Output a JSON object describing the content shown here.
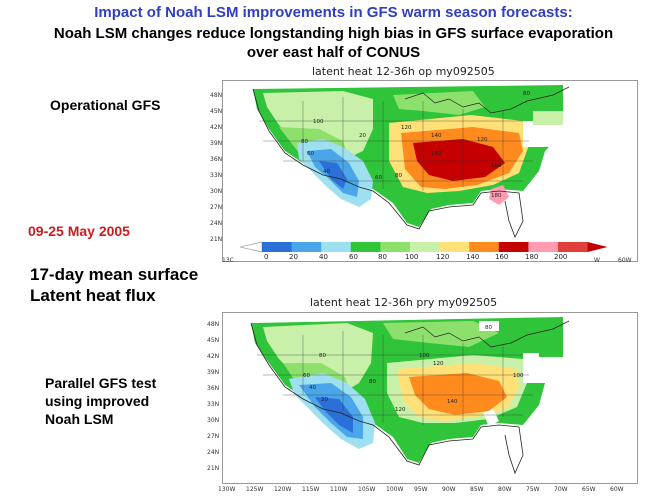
{
  "title_line1": "Impact of Noah LSM improvements in GFS warm season forecasts:",
  "title_line2a": "Noah LSM changes reduce longstanding high  bias in GFS surface evaporation",
  "title_line2b": "over east half of CONUS",
  "label_operational": "Operational GFS",
  "label_dates": "09-25 May 2005",
  "label_mean_a": "17-day mean surface",
  "label_mean_b": "Latent heat flux",
  "label_parallel_a": "Parallel GFS test",
  "label_parallel_b": "using improved",
  "label_parallel_c": "Noah LSM",
  "colors": {
    "title_blue": "#2f3fc4",
    "dates_red": "#c81e1e"
  },
  "map_top": {
    "title": "latent heat 12-36h op my092505",
    "lat_labels": [
      "48N",
      "45N",
      "42N",
      "39N",
      "36N",
      "33N",
      "30N",
      "27N",
      "24N",
      "21N"
    ],
    "lon_left_edge": "13C",
    "lon_right_labels": [
      "W",
      "60W"
    ],
    "contour_labels": [
      "100",
      "80",
      "60",
      "40",
      "20",
      "60",
      "80",
      "120",
      "140",
      "140",
      "120",
      "160",
      "180",
      "80"
    ]
  },
  "colorbar": {
    "labels": [
      "0",
      "20",
      "40",
      "60",
      "80",
      "100",
      "120",
      "140",
      "160",
      "180",
      "200"
    ],
    "colors": [
      "#2b6fd9",
      "#4aa6e8",
      "#9fe0f0",
      "#2fc43a",
      "#8ee06d",
      "#c8f0a8",
      "#ffe178",
      "#ff8a1e",
      "#c40000",
      "#ff9cb0",
      "#e0403c"
    ]
  },
  "map_bottom": {
    "title": "latent heat 12-36h pry my092505",
    "lat_labels": [
      "48N",
      "45N",
      "42N",
      "39N",
      "36N",
      "33N",
      "30N",
      "27N",
      "24N",
      "21N"
    ],
    "lon_labels": [
      "130W",
      "125W",
      "120W",
      "115W",
      "110W",
      "105W",
      "100W",
      "95W",
      "90W",
      "85W",
      "80W",
      "75W",
      "70W",
      "65W",
      "60W"
    ],
    "contour_labels": [
      "80",
      "60",
      "40",
      "20",
      "80",
      "100",
      "120",
      "140",
      "120",
      "100",
      "80"
    ]
  }
}
